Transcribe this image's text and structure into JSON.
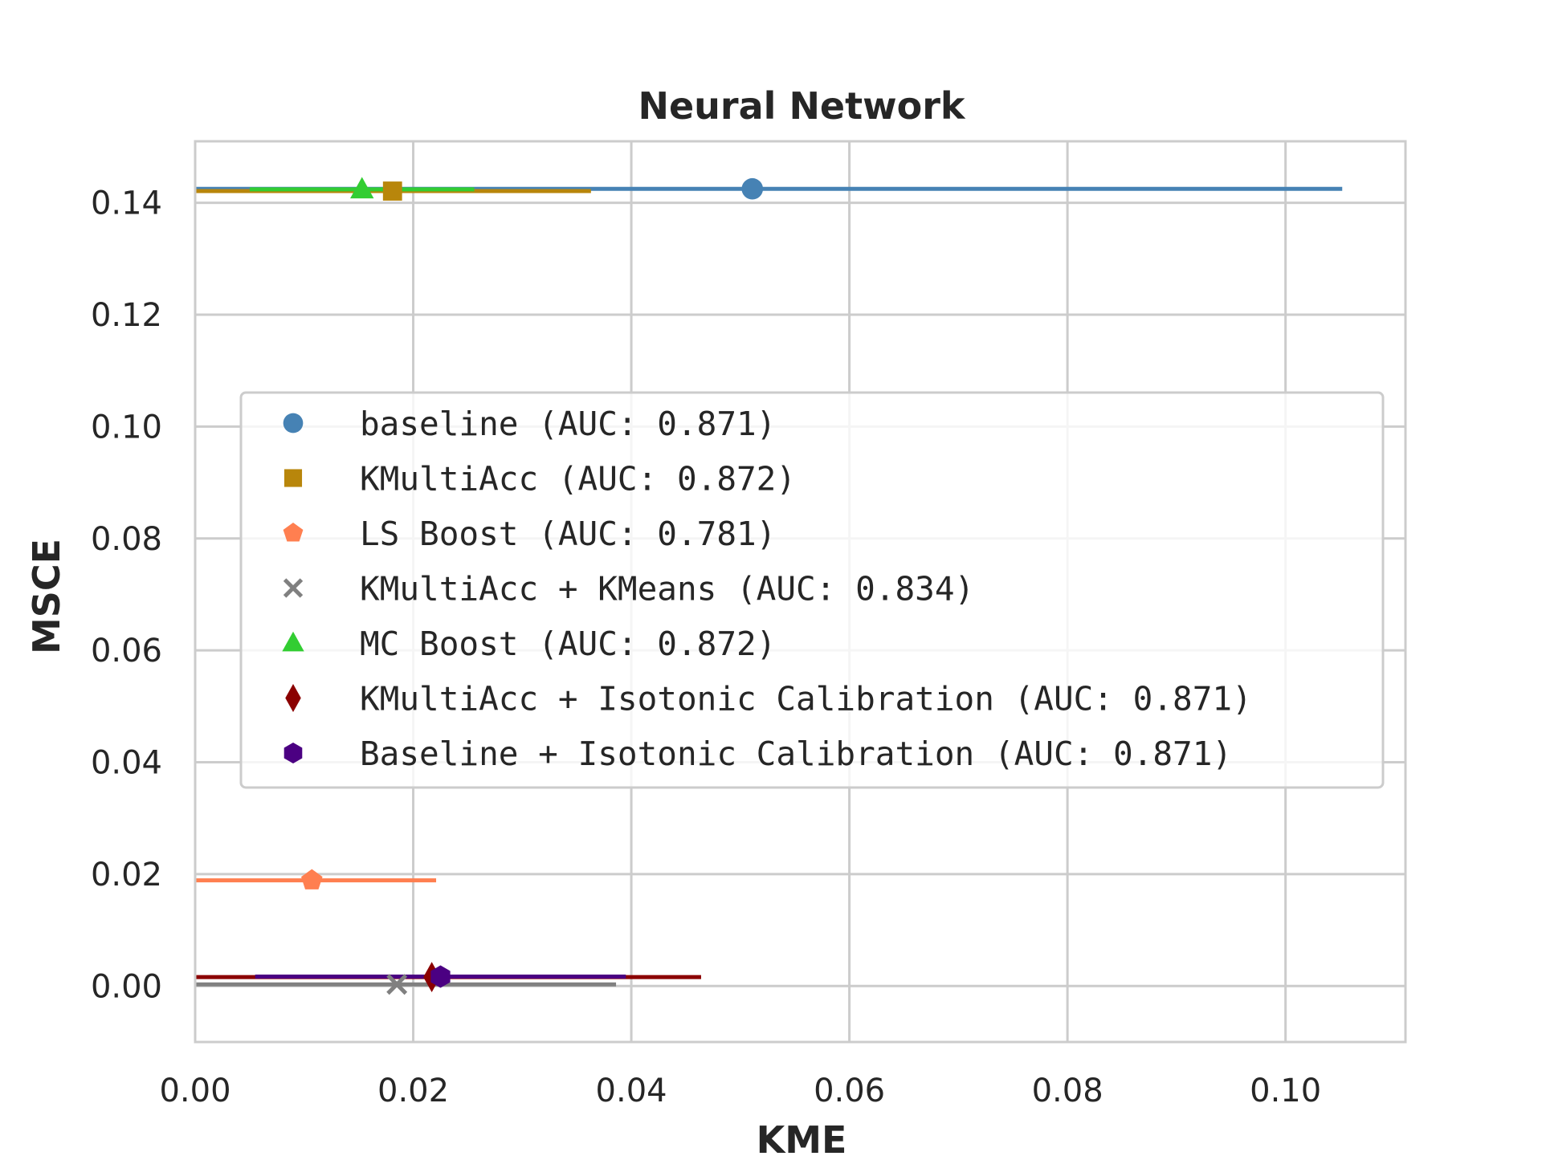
{
  "chart_data": {
    "type": "scatter",
    "title": "Neural Network",
    "xlabel": "KME",
    "ylabel": "MSCE",
    "xlim": [
      0.0,
      0.111
    ],
    "ylim": [
      -0.01,
      0.151
    ],
    "xticks": [
      0.0,
      0.02,
      0.04,
      0.06,
      0.08,
      0.1
    ],
    "xtick_labels": [
      "0.00",
      "0.02",
      "0.04",
      "0.06",
      "0.08",
      "0.10"
    ],
    "yticks": [
      0.0,
      0.02,
      0.04,
      0.06,
      0.08,
      0.1,
      0.12,
      0.14
    ],
    "ytick_labels": [
      "0.00",
      "0.02",
      "0.04",
      "0.06",
      "0.08",
      "0.10",
      "0.12",
      "0.14"
    ],
    "grid": true,
    "legend_position": "center",
    "series": [
      {
        "name": "baseline (AUC: 0.871)",
        "marker": "circle",
        "color": "#4682b4",
        "x": 0.0511,
        "y": 0.1425,
        "xerr_low": 0.0,
        "xerr_high": 0.1052
      },
      {
        "name": "KMultiAcc (AUC: 0.872)",
        "marker": "square",
        "color": "#b8860b",
        "x": 0.0181,
        "y": 0.1421,
        "xerr_low": 0.0,
        "xerr_high": 0.0363
      },
      {
        "name": "LS Boost (AUC: 0.781)",
        "marker": "pentagon",
        "color": "#ff7f50",
        "x": 0.0107,
        "y": 0.0189,
        "xerr_low": 0.0,
        "xerr_high": 0.0221
      },
      {
        "name": "KMultiAcc + KMeans (AUC: 0.834)",
        "marker": "x",
        "color": "#808080",
        "x": 0.0185,
        "y": 0.0003,
        "xerr_low": 0.0,
        "xerr_high": 0.0386
      },
      {
        "name": "MC Boost (AUC: 0.872)",
        "marker": "triangle",
        "color": "#32cd32",
        "x": 0.0153,
        "y": 0.1424,
        "xerr_low": 0.005,
        "xerr_high": 0.0256
      },
      {
        "name": "KMultiAcc + Isotonic Calibration (AUC: 0.871)",
        "marker": "diamond",
        "color": "#8b0000",
        "x": 0.0217,
        "y": 0.0016,
        "xerr_low": 0.0,
        "xerr_high": 0.0464
      },
      {
        "name": "Baseline + Isotonic Calibration (AUC: 0.871)",
        "marker": "hexagon",
        "color": "#4b0082",
        "x": 0.0225,
        "y": 0.0017,
        "xerr_low": 0.0055,
        "xerr_high": 0.0395
      }
    ]
  }
}
